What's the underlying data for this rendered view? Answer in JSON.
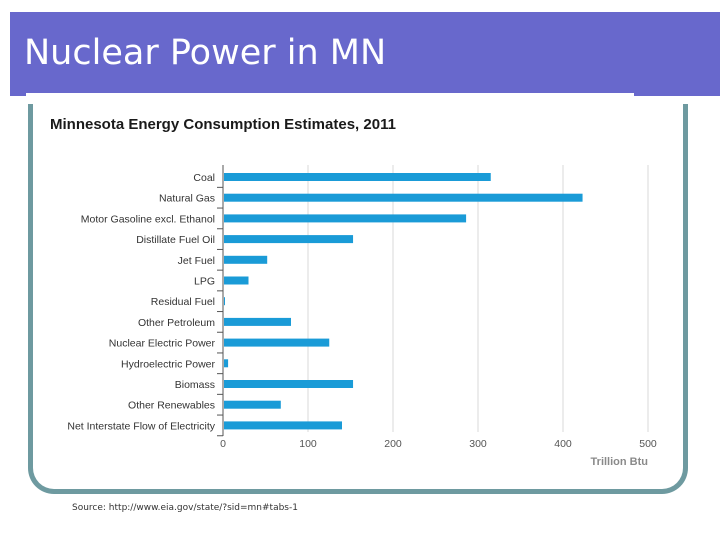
{
  "slide": {
    "title": "Nuclear Power in MN",
    "source": "Source: http://www.eia.gov/state/?sid=mn#tabs-1"
  },
  "colors": {
    "bar": "#1a9bd7",
    "title_bar": "#6868cc",
    "frame": "#6e9aa0"
  },
  "chart_data": {
    "type": "bar",
    "orientation": "horizontal",
    "title": "Minnesota Energy Consumption Estimates, 2011",
    "xlabel": "Trillion Btu",
    "xlim": [
      0,
      500
    ],
    "xticks": [
      0,
      100,
      200,
      300,
      400,
      500
    ],
    "grid": true,
    "categories": [
      "Coal",
      "Natural Gas",
      "Motor Gasoline excl. Ethanol",
      "Distillate Fuel Oil",
      "Jet Fuel",
      "LPG",
      "Residual Fuel",
      "Other Petroleum",
      "Nuclear Electric Power",
      "Hydroelectric Power",
      "Biomass",
      "Other Renewables",
      "Net Interstate Flow of Electricity"
    ],
    "values": [
      315,
      423,
      286,
      153,
      52,
      30,
      2,
      80,
      125,
      6,
      153,
      68,
      140
    ]
  }
}
